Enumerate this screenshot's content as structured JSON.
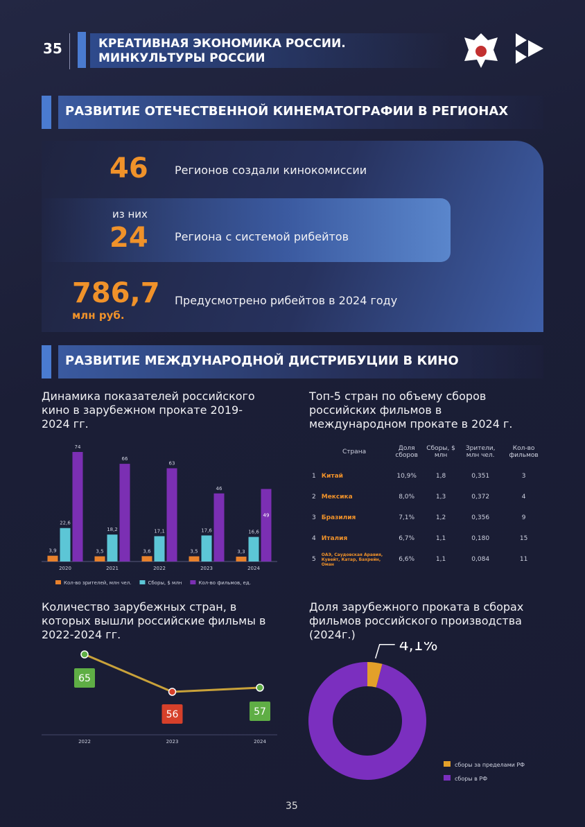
{
  "header": {
    "page_number": "35",
    "title_lines": [
      "КРЕАТИВНАЯ ЭКОНОМИКА РОССИИ.",
      "МИНКУЛЬТУРЫ РОССИИ"
    ]
  },
  "section_1": {
    "title": "РАЗВИТИЕ ОТЕЧЕСТВЕННОЙ КИНЕМАТОГРАФИИ В РЕГИОНАХ",
    "stats": [
      {
        "value": "46",
        "text": "Регионов создали кинокомиссии"
      },
      {
        "prefix": "из них",
        "value": "24",
        "text": "Региона с системой рибейтов"
      },
      {
        "value": "786,7",
        "unit": "млн руб.",
        "text": "Предусмотрено рибейтов в 2024 году"
      }
    ]
  },
  "section_2": {
    "title": "РАЗВИТИЕ МЕЖДУНАРОДНОЙ ДИСТРИБУЦИИ В КИНО"
  },
  "table_top5": {
    "title": "Топ-5 стран по объему сборов российских фильмов в международном прокате в 2024 г.",
    "columns": [
      "Страна",
      "Доля сборов",
      "Сборы, $ млн",
      "Зрители, млн чел.",
      "Кол-во фильмов"
    ],
    "rows": [
      [
        "1",
        "Китай",
        "10,9%",
        "1,8",
        "0,351",
        "3"
      ],
      [
        "2",
        "Мексика",
        "8,0%",
        "1,3",
        "0,372",
        "4"
      ],
      [
        "3",
        "Бразилия",
        "7,1%",
        "1,2",
        "0,356",
        "9"
      ],
      [
        "4",
        "Италия",
        "6,7%",
        "1,1",
        "0,180",
        "15"
      ],
      [
        "5",
        "ОАЭ, Саудовская Аравия, Кувейт, Катар, Бахрейн, Оман",
        "6,6%",
        "1,1",
        "0,084",
        "11"
      ]
    ]
  },
  "chart_data": [
    {
      "type": "bar",
      "title": "Динамика показателей российского кино в зарубежном прокате 2019-2024 гг.",
      "categories": [
        "2020",
        "2021",
        "2022",
        "2023",
        "2024"
      ],
      "series": [
        {
          "name": "Кол-во зрителей, млн чел.",
          "color": "#e8812c",
          "values": [
            3.9,
            3.5,
            3.6,
            3.5,
            3.3
          ],
          "value_labels": [
            "3,9",
            "3,5",
            "3,6",
            "3,5",
            "3,3"
          ]
        },
        {
          "name": "Сборы, $ млн",
          "color": "#5cc6d6",
          "values": [
            22.6,
            18.2,
            17.1,
            17.6,
            16.6
          ],
          "value_labels": [
            "22,6",
            "18,2",
            "17,1",
            "17,6",
            "16,6"
          ]
        },
        {
          "name": "Кол-во фильмов, ед.",
          "color": "#7b2fb3",
          "values": [
            74,
            66,
            63,
            46,
            49
          ]
        }
      ]
    },
    {
      "type": "line",
      "title": "Количество зарубежных стран, в которых вышли российские фильмы в 2022-2024 гг.",
      "categories": [
        "2022",
        "2023",
        "2024"
      ],
      "values": [
        65,
        56,
        57
      ],
      "color": "#c9a23a",
      "label_colors": [
        "#5fae45",
        "#d6402a",
        "#5fae45"
      ]
    },
    {
      "type": "pie",
      "title": "Доля зарубежного проката в сборах фильмов российского производства (2024г.)",
      "categories": [
        "сборы за пределами РФ",
        "сборы в РФ"
      ],
      "values": [
        4.1,
        95.9
      ],
      "value_labels": [
        "4,1%",
        null
      ],
      "colors": [
        "#e3a02a",
        "#7b2fbf"
      ]
    }
  ]
}
